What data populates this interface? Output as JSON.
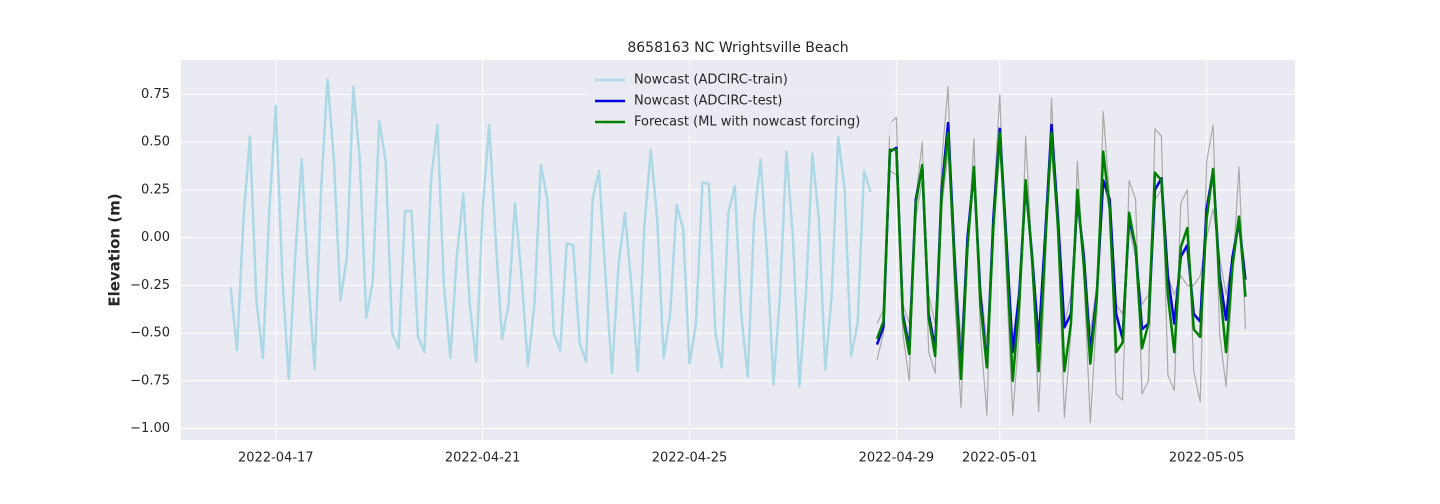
{
  "chart_data": {
    "type": "line",
    "title": "8658163 NC Wrightsville Beach",
    "y_label": "Elevation (m)",
    "xlim": [
      "2022-04-15 04:00",
      "2022-05-06 17:00"
    ],
    "xticks": [
      "2022-04-17",
      "2022-04-21",
      "2022-04-25",
      "2022-04-29",
      "2022-05-01",
      "2022-05-05"
    ],
    "ylim": [
      -1.06,
      0.93
    ],
    "yticks": [
      {
        "value": -1.0,
        "label": "−1.00"
      },
      {
        "value": -0.75,
        "label": "−0.75"
      },
      {
        "value": -0.5,
        "label": "−0.50"
      },
      {
        "value": -0.25,
        "label": "−0.25"
      },
      {
        "value": 0,
        "label": "0.00"
      },
      {
        "value": 0.25,
        "label": "0.25"
      },
      {
        "value": 0.5,
        "label": "0.50"
      },
      {
        "value": 0.75,
        "label": "0.75"
      }
    ],
    "grid": true,
    "legend": "upper center",
    "series": [
      {
        "color": "#aaaaaa",
        "x": [
          "2022-04-28 15:00",
          "2022-04-28 18:00",
          "2022-04-28 21:00",
          "2022-04-29 00:00",
          "2022-04-29 03:00",
          "2022-04-29 06:00",
          "2022-04-29 09:00",
          "2022-04-29 12:00",
          "2022-04-29 15:00",
          "2022-04-29 18:00",
          "2022-04-29 21:00",
          "2022-04-30 00:00",
          "2022-04-30 03:00",
          "2022-04-30 06:00",
          "2022-04-30 09:00",
          "2022-04-30 12:00",
          "2022-04-30 15:00",
          "2022-04-30 18:00",
          "2022-04-30 21:00",
          "2022-05-01 00:00",
          "2022-05-01 03:00",
          "2022-05-01 06:00",
          "2022-05-01 09:00",
          "2022-05-01 12:00",
          "2022-05-01 15:00",
          "2022-05-01 18:00",
          "2022-05-01 21:00",
          "2022-05-02 00:00",
          "2022-05-02 03:00",
          "2022-05-02 06:00",
          "2022-05-02 09:00",
          "2022-05-02 12:00",
          "2022-05-02 15:00",
          "2022-05-02 18:00",
          "2022-05-02 21:00",
          "2022-05-03 00:00",
          "2022-05-03 03:00",
          "2022-05-03 06:00",
          "2022-05-03 09:00",
          "2022-05-03 12:00",
          "2022-05-03 15:00",
          "2022-05-03 18:00",
          "2022-05-03 21:00",
          "2022-05-04 00:00",
          "2022-05-04 03:00",
          "2022-05-04 06:00",
          "2022-05-04 09:00",
          "2022-05-04 12:00",
          "2022-05-04 15:00",
          "2022-05-04 18:00",
          "2022-05-04 21:00",
          "2022-05-05 00:00",
          "2022-05-05 03:00",
          "2022-05-05 06:00",
          "2022-05-05 09:00",
          "2022-05-05 12:00",
          "2022-05-05 15:00",
          "2022-05-05 18:00"
        ],
        "values": [
          -0.64,
          -0.5,
          0.6,
          0.63,
          -0.5,
          -0.75,
          0.2,
          0.5,
          -0.6,
          -0.71,
          0.4,
          0.79,
          -0.3,
          -0.89,
          -0.1,
          0.52,
          -0.5,
          -0.93,
          0.15,
          0.75,
          -0.2,
          -0.93,
          -0.5,
          0.53,
          -0.1,
          -0.91,
          -0.2,
          0.73,
          0.0,
          -0.94,
          -0.5,
          0.4,
          -0.2,
          -0.97,
          -0.4,
          0.66,
          0.2,
          -0.82,
          -0.85,
          0.3,
          0.2,
          -0.82,
          -0.75,
          0.57,
          0.53,
          -0.72,
          -0.8,
          0.18,
          0.25,
          -0.7,
          -0.86,
          0.4,
          0.59,
          -0.5,
          -0.78,
          -0.2,
          0.37,
          -0.48
        ]
      },
      {
        "color": "#aaaaaa",
        "x": [
          "2022-04-28 15:00",
          "2022-04-28 18:00",
          "2022-04-28 21:00",
          "2022-04-29 00:00",
          "2022-04-29 03:00",
          "2022-04-29 06:00",
          "2022-04-29 09:00",
          "2022-04-29 12:00",
          "2022-04-29 15:00",
          "2022-04-29 18:00",
          "2022-04-29 21:00",
          "2022-04-30 00:00",
          "2022-04-30 03:00",
          "2022-04-30 06:00",
          "2022-04-30 09:00",
          "2022-04-30 12:00",
          "2022-04-30 15:00",
          "2022-04-30 18:00",
          "2022-04-30 21:00",
          "2022-05-01 00:00",
          "2022-05-01 03:00",
          "2022-05-01 06:00",
          "2022-05-01 09:00",
          "2022-05-01 12:00",
          "2022-05-01 15:00",
          "2022-05-01 18:00",
          "2022-05-01 21:00",
          "2022-05-02 00:00",
          "2022-05-02 03:00",
          "2022-05-02 06:00",
          "2022-05-02 09:00",
          "2022-05-02 12:00",
          "2022-05-02 15:00",
          "2022-05-02 18:00",
          "2022-05-02 21:00",
          "2022-05-03 00:00",
          "2022-05-03 03:00",
          "2022-05-03 06:00",
          "2022-05-03 09:00",
          "2022-05-03 12:00",
          "2022-05-03 15:00",
          "2022-05-03 18:00",
          "2022-05-03 21:00",
          "2022-05-04 00:00",
          "2022-05-04 03:00",
          "2022-05-04 06:00",
          "2022-05-04 09:00",
          "2022-05-04 12:00",
          "2022-05-04 15:00",
          "2022-05-04 18:00",
          "2022-05-04 21:00",
          "2022-05-05 00:00",
          "2022-05-05 03:00",
          "2022-05-05 06:00",
          "2022-05-05 09:00",
          "2022-05-05 12:00",
          "2022-05-05 15:00",
          "2022-05-05 18:00"
        ],
        "values": [
          -0.45,
          -0.38,
          0.35,
          0.33,
          -0.35,
          -0.45,
          0.1,
          0.3,
          -0.3,
          -0.45,
          0.15,
          0.45,
          -0.05,
          -0.55,
          0.0,
          0.3,
          -0.25,
          -0.55,
          0.05,
          0.45,
          0.0,
          -0.55,
          -0.25,
          0.25,
          -0.05,
          -0.5,
          0.0,
          0.45,
          0.05,
          -0.45,
          -0.3,
          0.2,
          -0.05,
          -0.5,
          -0.25,
          0.3,
          0.15,
          -0.35,
          -0.4,
          0.05,
          -0.1,
          -0.35,
          -0.3,
          0.2,
          0.25,
          -0.2,
          -0.3,
          -0.2,
          -0.25,
          -0.25,
          -0.2,
          0.0,
          0.15,
          -0.1,
          -0.3,
          -0.1,
          0.05,
          -0.2
        ]
      },
      {
        "name": "Nowcast (ADCIRC-train)",
        "color": "#add8e6",
        "x": [
          "2022-04-16 03:00",
          "2022-04-16 06:00",
          "2022-04-16 09:00",
          "2022-04-16 12:00",
          "2022-04-16 15:00",
          "2022-04-16 18:00",
          "2022-04-16 21:00",
          "2022-04-17 00:00",
          "2022-04-17 03:00",
          "2022-04-17 06:00",
          "2022-04-17 09:00",
          "2022-04-17 12:00",
          "2022-04-17 15:00",
          "2022-04-17 18:00",
          "2022-04-17 21:00",
          "2022-04-18 00:00",
          "2022-04-18 03:00",
          "2022-04-18 06:00",
          "2022-04-18 09:00",
          "2022-04-18 12:00",
          "2022-04-18 15:00",
          "2022-04-18 18:00",
          "2022-04-18 21:00",
          "2022-04-19 00:00",
          "2022-04-19 03:00",
          "2022-04-19 06:00",
          "2022-04-19 09:00",
          "2022-04-19 12:00",
          "2022-04-19 15:00",
          "2022-04-19 18:00",
          "2022-04-19 21:00",
          "2022-04-20 00:00",
          "2022-04-20 03:00",
          "2022-04-20 06:00",
          "2022-04-20 09:00",
          "2022-04-20 12:00",
          "2022-04-20 15:00",
          "2022-04-20 18:00",
          "2022-04-20 21:00",
          "2022-04-21 00:00",
          "2022-04-21 03:00",
          "2022-04-21 06:00",
          "2022-04-21 09:00",
          "2022-04-21 12:00",
          "2022-04-21 15:00",
          "2022-04-21 18:00",
          "2022-04-21 21:00",
          "2022-04-22 00:00",
          "2022-04-22 03:00",
          "2022-04-22 06:00",
          "2022-04-22 09:00",
          "2022-04-22 12:00",
          "2022-04-22 15:00",
          "2022-04-22 18:00",
          "2022-04-22 21:00",
          "2022-04-23 00:00",
          "2022-04-23 03:00",
          "2022-04-23 06:00",
          "2022-04-23 09:00",
          "2022-04-23 12:00",
          "2022-04-23 15:00",
          "2022-04-23 18:00",
          "2022-04-23 21:00",
          "2022-04-24 00:00",
          "2022-04-24 03:00",
          "2022-04-24 06:00",
          "2022-04-24 09:00",
          "2022-04-24 12:00",
          "2022-04-24 15:00",
          "2022-04-24 18:00",
          "2022-04-24 21:00",
          "2022-04-25 00:00",
          "2022-04-25 03:00",
          "2022-04-25 06:00",
          "2022-04-25 09:00",
          "2022-04-25 12:00",
          "2022-04-25 15:00",
          "2022-04-25 18:00",
          "2022-04-25 21:00",
          "2022-04-26 00:00",
          "2022-04-26 03:00",
          "2022-04-26 06:00",
          "2022-04-26 09:00",
          "2022-04-26 12:00",
          "2022-04-26 15:00",
          "2022-04-26 18:00",
          "2022-04-26 21:00",
          "2022-04-27 00:00",
          "2022-04-27 03:00",
          "2022-04-27 06:00",
          "2022-04-27 09:00",
          "2022-04-27 12:00",
          "2022-04-27 15:00",
          "2022-04-27 18:00",
          "2022-04-27 21:00",
          "2022-04-28 00:00",
          "2022-04-28 03:00",
          "2022-04-28 06:00",
          "2022-04-28 09:00",
          "2022-04-28 12:00"
        ],
        "values": [
          -0.26,
          -0.59,
          0.1,
          0.53,
          -0.33,
          -0.63,
          0.15,
          0.69,
          -0.2,
          -0.74,
          -0.1,
          0.41,
          -0.2,
          -0.69,
          0.25,
          0.83,
          0.4,
          -0.33,
          -0.1,
          0.79,
          0.4,
          -0.42,
          -0.23,
          0.61,
          0.4,
          -0.5,
          -0.58,
          0.14,
          0.14,
          -0.52,
          -0.6,
          0.3,
          0.59,
          -0.25,
          -0.63,
          -0.1,
          0.23,
          -0.35,
          -0.65,
          0.15,
          0.59,
          0.0,
          -0.53,
          -0.35,
          0.18,
          -0.2,
          -0.67,
          -0.35,
          0.38,
          0.2,
          -0.5,
          -0.59,
          -0.03,
          -0.04,
          -0.55,
          -0.65,
          0.2,
          0.35,
          -0.2,
          -0.71,
          -0.15,
          0.13,
          -0.25,
          -0.7,
          0.05,
          0.46,
          0.1,
          -0.63,
          -0.4,
          0.17,
          0.05,
          -0.66,
          -0.45,
          0.29,
          0.28,
          -0.5,
          -0.68,
          0.13,
          0.27,
          -0.4,
          -0.73,
          0.1,
          0.41,
          -0.1,
          -0.77,
          -0.3,
          0.45,
          0.0,
          -0.78,
          -0.3,
          0.44,
          0.1,
          -0.69,
          -0.3,
          0.53,
          0.25,
          -0.62,
          -0.45,
          0.35,
          0.24
        ]
      },
      {
        "name": "Nowcast (ADCIRC-test)",
        "color": "#0000e0",
        "x": [
          "2022-04-28 15:00",
          "2022-04-28 18:00",
          "2022-04-28 21:00",
          "2022-04-29 00:00",
          "2022-04-29 03:00",
          "2022-04-29 06:00",
          "2022-04-29 09:00",
          "2022-04-29 12:00",
          "2022-04-29 15:00",
          "2022-04-29 18:00",
          "2022-04-29 21:00",
          "2022-04-30 00:00",
          "2022-04-30 03:00",
          "2022-04-30 06:00",
          "2022-04-30 09:00",
          "2022-04-30 12:00",
          "2022-04-30 15:00",
          "2022-04-30 18:00",
          "2022-04-30 21:00",
          "2022-05-01 00:00",
          "2022-05-01 03:00",
          "2022-05-01 06:00",
          "2022-05-01 09:00",
          "2022-05-01 12:00",
          "2022-05-01 15:00",
          "2022-05-01 18:00",
          "2022-05-01 21:00",
          "2022-05-02 00:00",
          "2022-05-02 03:00",
          "2022-05-02 06:00",
          "2022-05-02 09:00",
          "2022-05-02 12:00",
          "2022-05-02 15:00",
          "2022-05-02 18:00",
          "2022-05-02 21:00",
          "2022-05-03 00:00",
          "2022-05-03 03:00",
          "2022-05-03 06:00",
          "2022-05-03 09:00",
          "2022-05-03 12:00",
          "2022-05-03 15:00",
          "2022-05-03 18:00",
          "2022-05-03 21:00",
          "2022-05-04 00:00",
          "2022-05-04 03:00",
          "2022-05-04 06:00",
          "2022-05-04 09:00",
          "2022-05-04 12:00",
          "2022-05-04 15:00",
          "2022-05-04 18:00",
          "2022-05-04 21:00",
          "2022-05-05 00:00",
          "2022-05-05 03:00",
          "2022-05-05 06:00",
          "2022-05-05 09:00",
          "2022-05-05 12:00",
          "2022-05-05 15:00",
          "2022-05-05 18:00"
        ],
        "values": [
          -0.56,
          -0.47,
          0.45,
          0.47,
          -0.4,
          -0.58,
          0.2,
          0.37,
          -0.4,
          -0.58,
          0.25,
          0.6,
          -0.1,
          -0.7,
          0.0,
          0.35,
          -0.3,
          -0.67,
          0.1,
          0.57,
          0.0,
          -0.6,
          -0.3,
          0.28,
          -0.1,
          -0.55,
          0.0,
          0.59,
          0.1,
          -0.47,
          -0.4,
          0.2,
          -0.1,
          -0.6,
          -0.3,
          0.3,
          0.2,
          -0.4,
          -0.53,
          0.1,
          -0.05,
          -0.48,
          -0.45,
          0.25,
          0.31,
          -0.2,
          -0.45,
          -0.1,
          -0.04,
          -0.4,
          -0.44,
          0.15,
          0.35,
          -0.2,
          -0.43,
          -0.1,
          0.08,
          -0.22
        ]
      },
      {
        "name": "Forecast (ML with nowcast forcing)",
        "color": "#008000",
        "x": [
          "2022-04-28 15:00",
          "2022-04-28 18:00",
          "2022-04-28 21:00",
          "2022-04-29 00:00",
          "2022-04-29 03:00",
          "2022-04-29 06:00",
          "2022-04-29 09:00",
          "2022-04-29 12:00",
          "2022-04-29 15:00",
          "2022-04-29 18:00",
          "2022-04-29 21:00",
          "2022-04-30 00:00",
          "2022-04-30 03:00",
          "2022-04-30 06:00",
          "2022-04-30 09:00",
          "2022-04-30 12:00",
          "2022-04-30 15:00",
          "2022-04-30 18:00",
          "2022-04-30 21:00",
          "2022-05-01 00:00",
          "2022-05-01 03:00",
          "2022-05-01 06:00",
          "2022-05-01 09:00",
          "2022-05-01 12:00",
          "2022-05-01 15:00",
          "2022-05-01 18:00",
          "2022-05-01 21:00",
          "2022-05-02 00:00",
          "2022-05-02 03:00",
          "2022-05-02 06:00",
          "2022-05-02 09:00",
          "2022-05-02 12:00",
          "2022-05-02 15:00",
          "2022-05-02 18:00",
          "2022-05-02 21:00",
          "2022-05-03 00:00",
          "2022-05-03 03:00",
          "2022-05-03 06:00",
          "2022-05-03 09:00",
          "2022-05-03 12:00",
          "2022-05-03 15:00",
          "2022-05-03 18:00",
          "2022-05-03 21:00",
          "2022-05-04 00:00",
          "2022-05-04 03:00",
          "2022-05-04 06:00",
          "2022-05-04 09:00",
          "2022-05-04 12:00",
          "2022-05-04 15:00",
          "2022-05-04 18:00",
          "2022-05-04 21:00",
          "2022-05-05 00:00",
          "2022-05-05 03:00",
          "2022-05-05 06:00",
          "2022-05-05 09:00",
          "2022-05-05 12:00",
          "2022-05-05 15:00",
          "2022-05-05 18:00"
        ],
        "values": [
          -0.53,
          -0.44,
          0.46,
          0.46,
          -0.42,
          -0.61,
          0.18,
          0.38,
          -0.42,
          -0.62,
          0.22,
          0.55,
          -0.15,
          -0.74,
          -0.05,
          0.37,
          -0.35,
          -0.68,
          0.05,
          0.55,
          -0.05,
          -0.75,
          -0.35,
          0.3,
          -0.12,
          -0.7,
          -0.05,
          0.55,
          0.05,
          -0.7,
          -0.45,
          0.25,
          -0.15,
          -0.66,
          -0.32,
          0.45,
          0.15,
          -0.6,
          -0.55,
          0.13,
          -0.05,
          -0.58,
          -0.45,
          0.34,
          0.3,
          -0.3,
          -0.6,
          -0.05,
          0.05,
          -0.48,
          -0.52,
          0.1,
          0.36,
          -0.25,
          -0.6,
          -0.15,
          0.11,
          -0.31
        ]
      }
    ]
  }
}
